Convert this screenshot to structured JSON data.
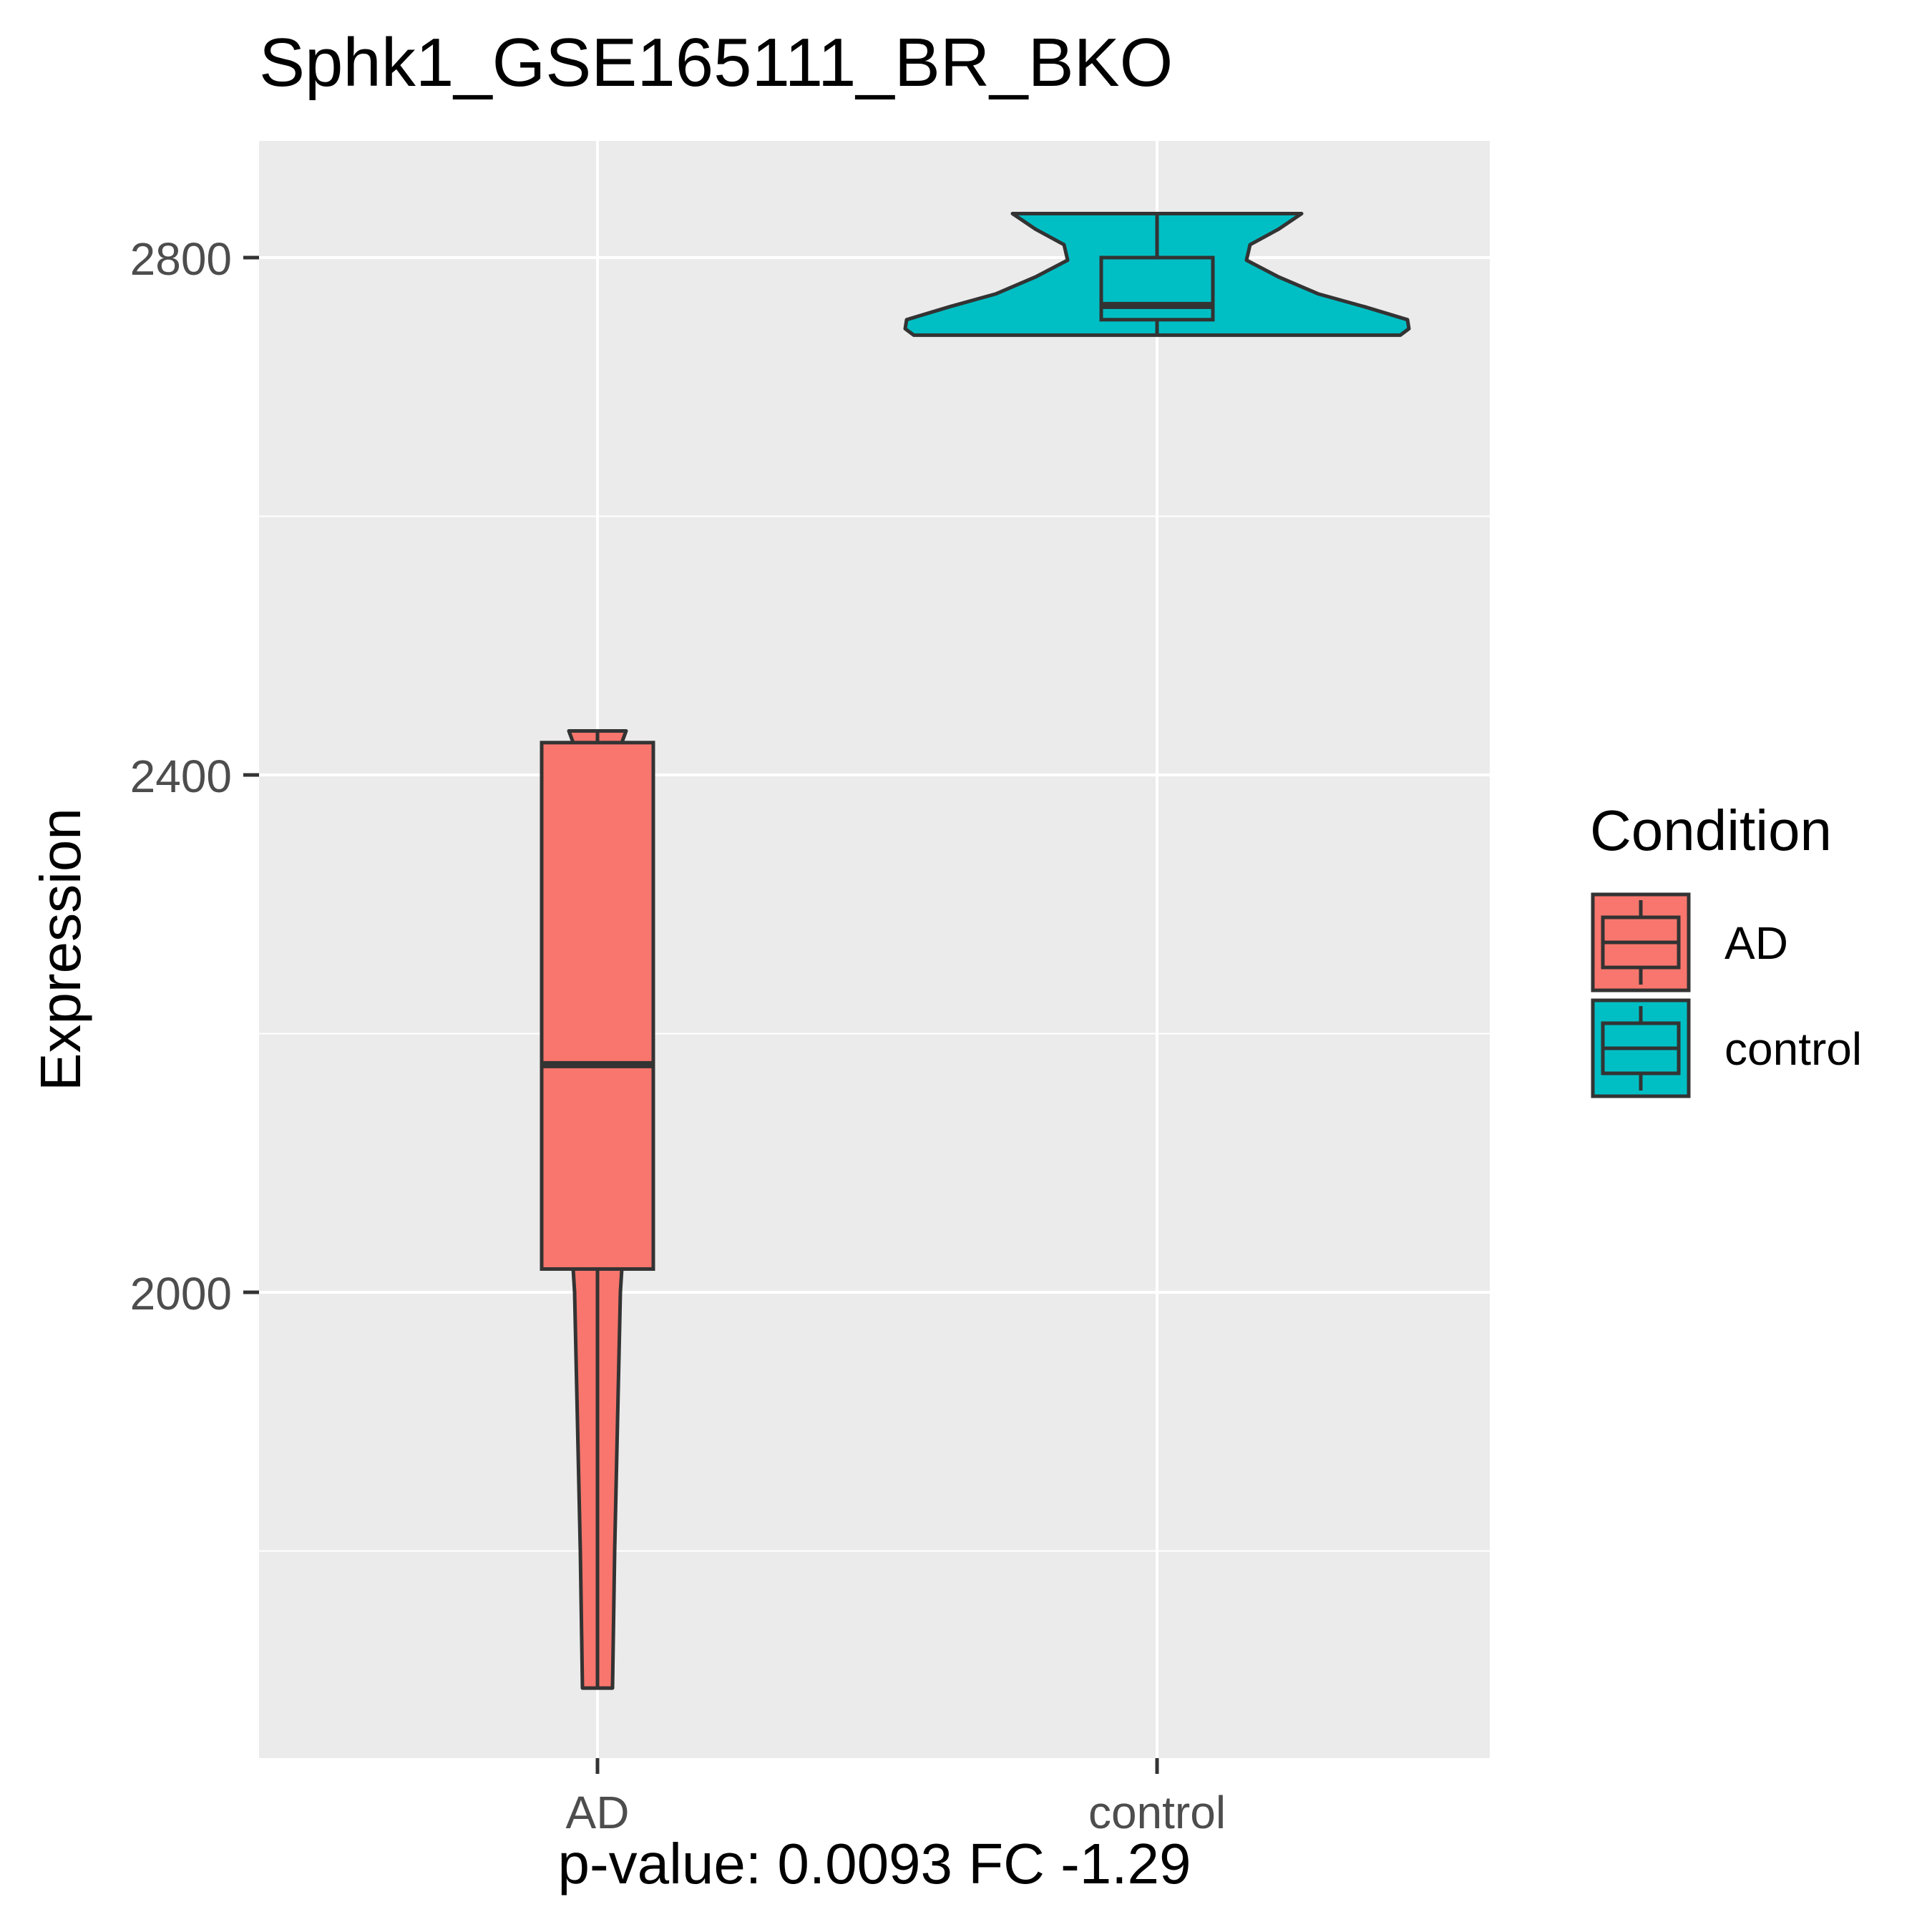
{
  "chart_data": {
    "type": "violin",
    "title": "Sphk1_GSE165111_BR_BKO",
    "xlabel": "p-value: 0.0093 FC -1.29",
    "ylabel": "Expression",
    "categories": [
      "AD",
      "control"
    ],
    "yticks": [
      2000,
      2400,
      2800
    ],
    "ylim": [
      1635,
      2890
    ],
    "grid": true,
    "legend": {
      "title": "Condition",
      "position": "right",
      "items": [
        "AD",
        "control"
      ]
    },
    "colors": {
      "AD": "#F8766D",
      "control": "#00BFC4",
      "outline": "#333333",
      "panel": "#EBEBEB",
      "grid": "#FFFFFF"
    },
    "series": [
      {
        "name": "AD",
        "box": {
          "min": 1694,
          "q1": 2018,
          "median": 2176,
          "q3": 2425,
          "max": 2434
        },
        "violin_extent": [
          1694,
          2434
        ]
      },
      {
        "name": "control",
        "box": {
          "min": 2740,
          "q1": 2752,
          "median": 2763,
          "q3": 2800,
          "max": 2834
        },
        "violin_extent": [
          2740,
          2834
        ]
      }
    ]
  }
}
